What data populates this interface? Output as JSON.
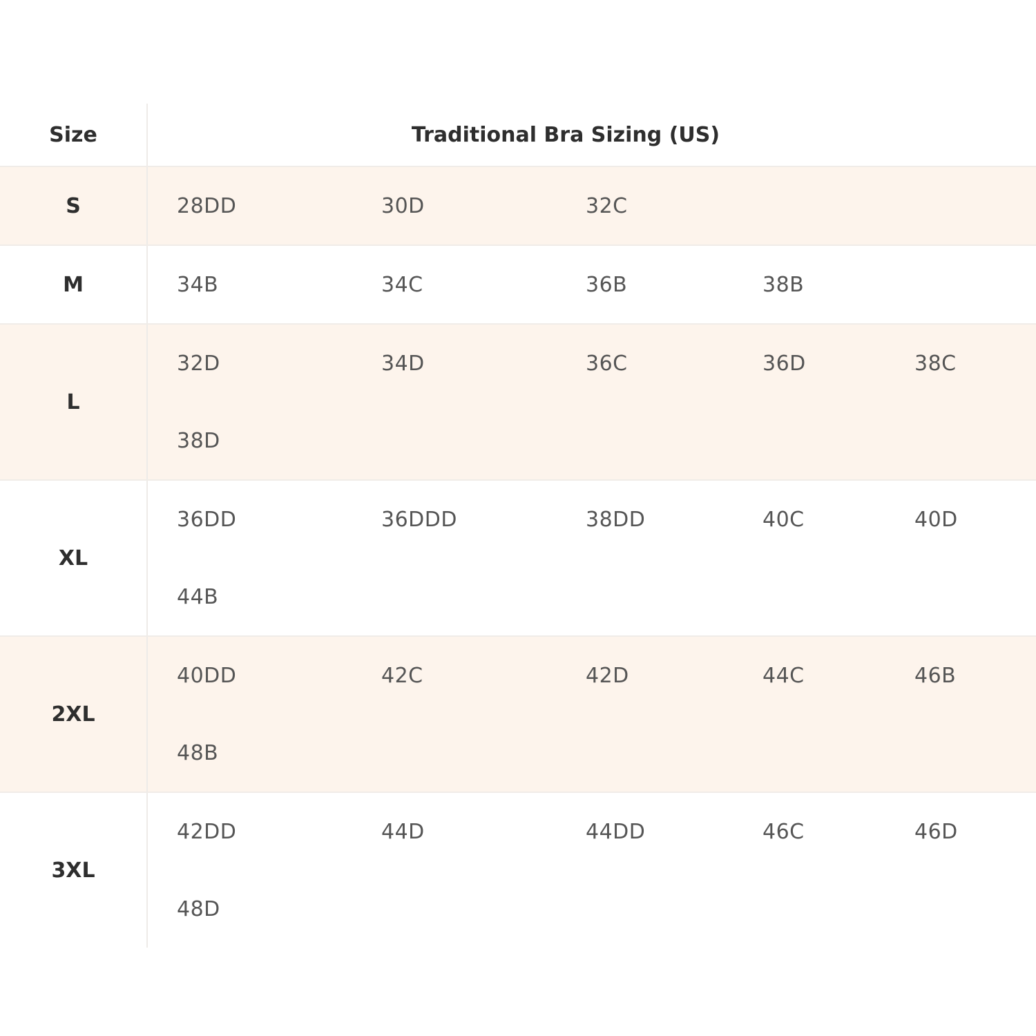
{
  "table": {
    "headers": [
      "Size",
      "Traditional Bra Sizing (US)"
    ],
    "rows": [
      {
        "size": "S",
        "values": [
          "28DD",
          "30D",
          "32C"
        ]
      },
      {
        "size": "M",
        "values": [
          "34B",
          "34C",
          "36B",
          "38B"
        ]
      },
      {
        "size": "L",
        "values": [
          "32D",
          "34D",
          "36C",
          "36D",
          "38C",
          "38D"
        ]
      },
      {
        "size": "XL",
        "values": [
          "36DD",
          "36DDD",
          "38DD",
          "40C",
          "40D",
          "44B"
        ]
      },
      {
        "size": "2XL",
        "values": [
          "40DD",
          "42C",
          "42D",
          "44C",
          "46B",
          "48B"
        ]
      },
      {
        "size": "3XL",
        "values": [
          "42DD",
          "44D",
          "44DD",
          "46C",
          "46D",
          "48D"
        ]
      }
    ]
  },
  "colors": {
    "shaded_row": "#fdf4ec",
    "text": "#555555",
    "heading": "#2e2e2e"
  }
}
